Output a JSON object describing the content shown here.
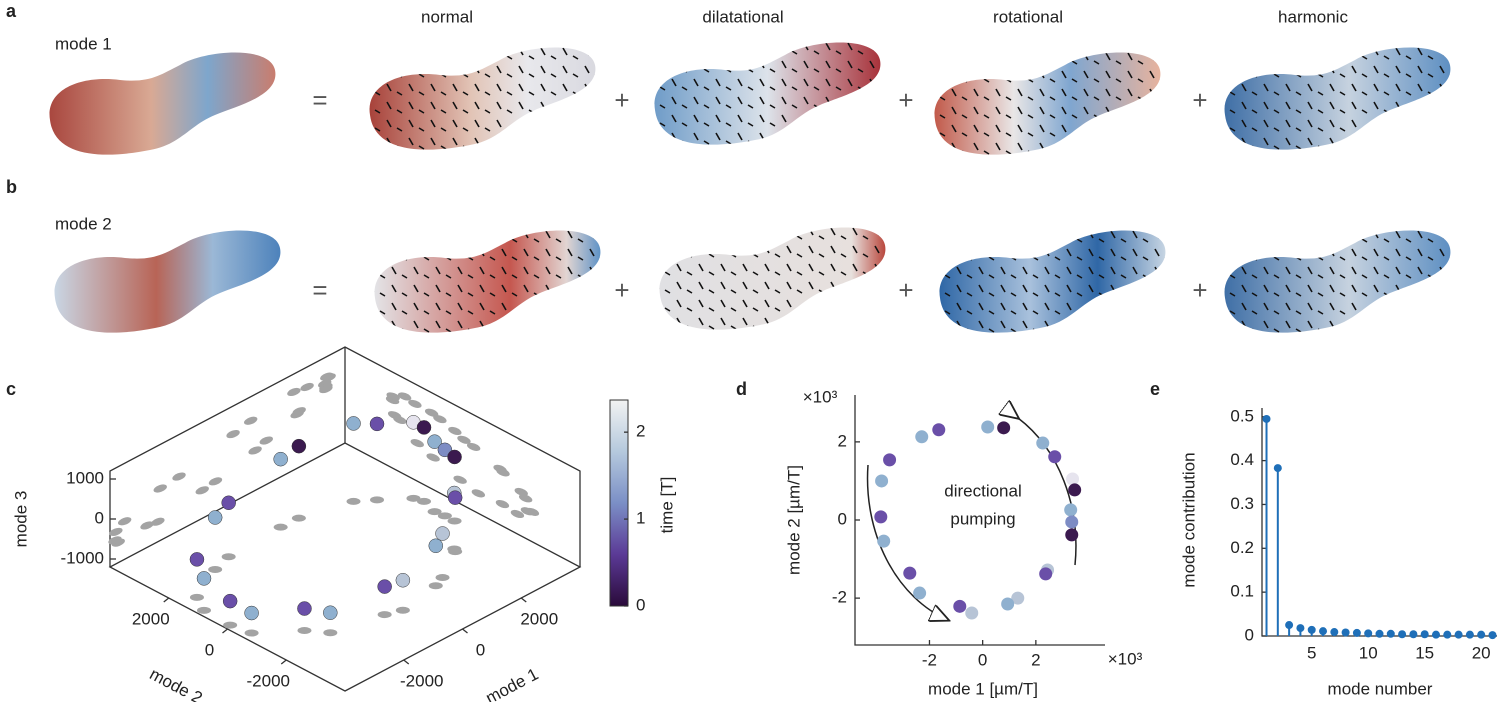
{
  "panel_labels": [
    "a",
    "b",
    "c",
    "d",
    "e"
  ],
  "decomposition": {
    "columns": [
      "normal",
      "dilatational",
      "rotational",
      "harmonic"
    ],
    "rows": [
      "mode 1",
      "mode 2"
    ],
    "equals": "=",
    "plus": "+"
  },
  "chart_data": [
    {
      "type": "scatter3d",
      "xlabel": "mode 1",
      "ylabel": "mode 2",
      "zlabel": "mode 3",
      "xlim": [
        -4000,
        4000
      ],
      "ylim": [
        -4000,
        4000
      ],
      "zlim": [
        -1200,
        1200
      ],
      "xticks": [
        -2000,
        0,
        2000
      ],
      "yticks": [
        -2000,
        0,
        2000
      ],
      "zticks": [
        -1000,
        0,
        1000
      ],
      "x": [
        -2290,
        -1650,
        190,
        790,
        2260,
        2710,
        3380,
        3460,
        3310,
        3350,
        3350,
        2440,
        2370,
        1320,
        940,
        -860,
        -410,
        -2370,
        -2740,
        -3720,
        -3830,
        -3800,
        -3500
      ],
      "y": [
        2130,
        2310,
        2380,
        2360,
        1970,
        1620,
        1050,
        770,
        260,
        -50,
        -380,
        -1280,
        -1380,
        -2000,
        -2150,
        -2210,
        -2380,
        -1870,
        -1360,
        -540,
        80,
        1000,
        1540
      ],
      "z": [
        100,
        150,
        500,
        600,
        750,
        700,
        700,
        650,
        550,
        450,
        400,
        200,
        150,
        -100,
        -200,
        -500,
        -450,
        -700,
        -650,
        -700,
        -600,
        -400,
        -250
      ],
      "colors": [
        "#8fb0cf",
        "#6a4fa8",
        "#8fb0cf",
        "#3b1a4f",
        "#8fb0cf",
        "#6a4fa8",
        "#e6e4ee",
        "#3b1a4f",
        "#8fb0cf",
        "#7d8cc4",
        "#3b1a4f",
        "#b7c4d6",
        "#6a4fa8",
        "#b7c4d6",
        "#8fb0cf",
        "#6a4fa8",
        "#b7c4d6",
        "#8fb0cf",
        "#6a4fa8",
        "#8fb0cf",
        "#6a4fa8",
        "#8fb0cf",
        "#6a4fa8"
      ],
      "projection_color": "#a3a3a3",
      "colorbar": {
        "label": "time [T]",
        "lim": [
          0,
          2.37
        ],
        "ticks": [
          0,
          1,
          2
        ],
        "colors": [
          "#2a0a3a",
          "#5b3a96",
          "#7b8fc6",
          "#b5c9dd",
          "#f2f2f2"
        ]
      }
    },
    {
      "type": "scatter",
      "xlabel": "mode 1 [µm/T]",
      "ylabel": "mode 2 [µm/T]",
      "x_multiplier": "×10³",
      "y_multiplier": "×10³",
      "annotation": [
        "directional",
        "pumping"
      ],
      "xlim": [
        -4.8,
        4.6
      ],
      "ylim": [
        -3.2,
        3.2
      ],
      "xticks": [
        -2,
        0,
        2
      ],
      "yticks": [
        -2,
        0,
        2
      ],
      "x": [
        -2.29,
        -1.65,
        0.19,
        0.79,
        2.26,
        2.71,
        3.38,
        3.46,
        3.31,
        3.35,
        3.35,
        2.44,
        2.37,
        1.32,
        0.94,
        -0.86,
        -0.41,
        -2.37,
        -2.74,
        -3.72,
        -3.83,
        -3.8,
        -3.5
      ],
      "y": [
        2.13,
        2.31,
        2.38,
        2.36,
        1.97,
        1.62,
        1.05,
        0.77,
        0.26,
        -0.05,
        -0.38,
        -1.28,
        -1.38,
        -2.0,
        -2.15,
        -2.21,
        -2.38,
        -1.87,
        -1.36,
        -0.54,
        0.08,
        1.0,
        1.54
      ],
      "colors": [
        "#8fb0cf",
        "#6a4fa8",
        "#8fb0cf",
        "#3b1a4f",
        "#8fb0cf",
        "#6a4fa8",
        "#e6e4ee",
        "#3b1a4f",
        "#8fb0cf",
        "#7d8cc4",
        "#3b1a4f",
        "#b7c4d6",
        "#6a4fa8",
        "#b7c4d6",
        "#8fb0cf",
        "#6a4fa8",
        "#b7c4d6",
        "#8fb0cf",
        "#6a4fa8",
        "#8fb0cf",
        "#6a4fa8",
        "#8fb0cf",
        "#6a4fa8"
      ]
    },
    {
      "type": "stem",
      "xlabel": "mode number",
      "ylabel": "mode contribution",
      "x": [
        1,
        2,
        3,
        4,
        5,
        6,
        7,
        8,
        9,
        10,
        11,
        12,
        13,
        14,
        15,
        16,
        17,
        18,
        19,
        20,
        21
      ],
      "values": [
        0.495,
        0.383,
        0.025,
        0.018,
        0.014,
        0.011,
        0.009,
        0.008,
        0.007,
        0.006,
        0.005,
        0.005,
        0.004,
        0.004,
        0.004,
        0.003,
        0.003,
        0.003,
        0.003,
        0.003,
        0.002
      ],
      "color": "#1f6fb8",
      "xlim": [
        0.6,
        21.4
      ],
      "ylim": [
        0,
        0.52
      ],
      "xticks": [
        5,
        10,
        15,
        20
      ],
      "yticks": [
        0,
        0.1,
        0.2,
        0.3,
        0.4,
        0.5
      ]
    }
  ]
}
